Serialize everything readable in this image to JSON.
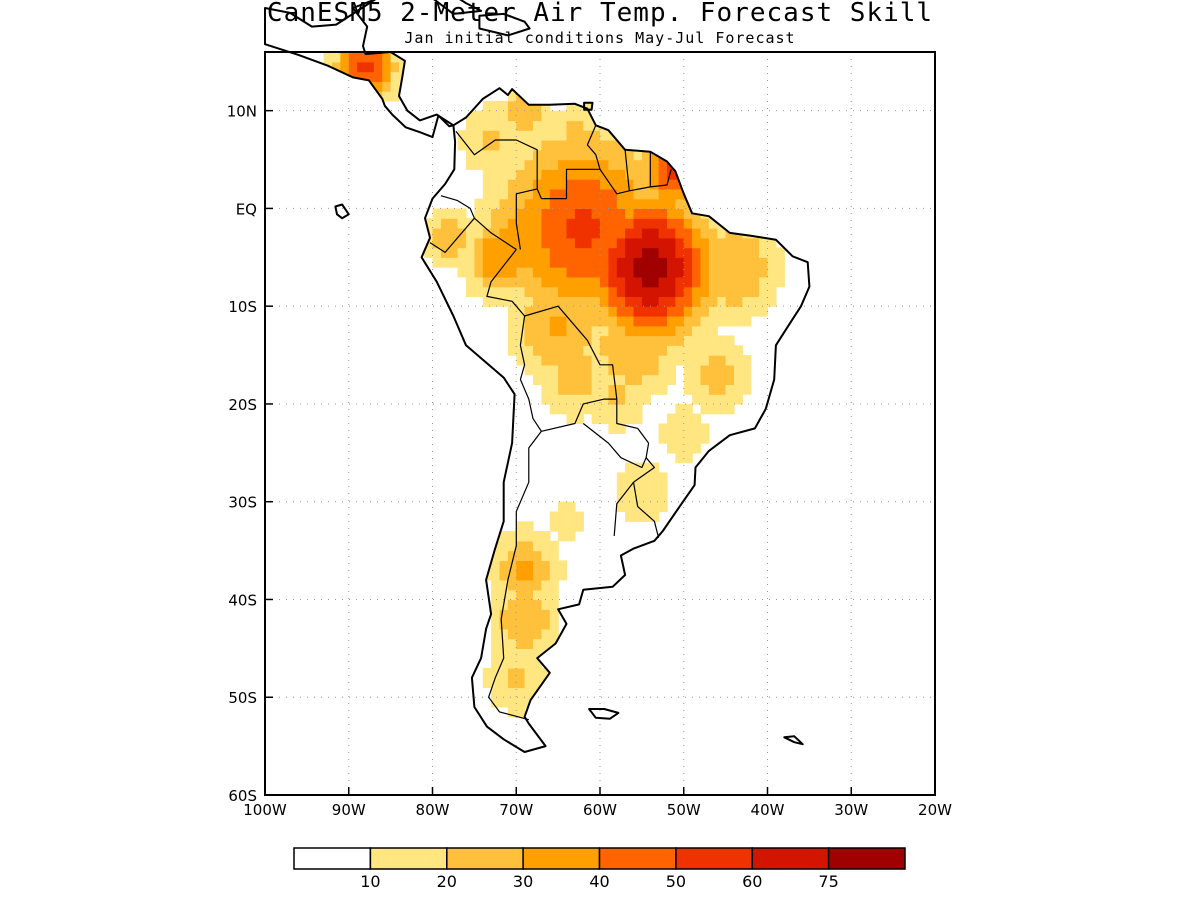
{
  "header": {
    "title": "CanESM5 2-Meter Air Temp. Forecast Skill",
    "subtitle": "Jan initial conditions  May-Jul Forecast"
  },
  "map": {
    "lon_range": [
      -100,
      -20
    ],
    "lat_range": [
      -60,
      16
    ],
    "x_ticks": [
      {
        "value": -100,
        "label": "100W"
      },
      {
        "value": -90,
        "label": "90W"
      },
      {
        "value": -80,
        "label": "80W"
      },
      {
        "value": -70,
        "label": "70W"
      },
      {
        "value": -60,
        "label": "60W"
      },
      {
        "value": -50,
        "label": "50W"
      },
      {
        "value": -40,
        "label": "40W"
      },
      {
        "value": -30,
        "label": "30W"
      },
      {
        "value": -20,
        "label": "20W"
      }
    ],
    "y_ticks": [
      {
        "value": 10,
        "label": "10N"
      },
      {
        "value": 0,
        "label": "EQ"
      },
      {
        "value": -10,
        "label": "10S"
      },
      {
        "value": -20,
        "label": "20S"
      },
      {
        "value": -30,
        "label": "30S"
      },
      {
        "value": -40,
        "label": "40S"
      },
      {
        "value": -50,
        "label": "50S"
      },
      {
        "value": -60,
        "label": "60S"
      }
    ],
    "grid": "dotted"
  },
  "legend": {
    "boundaries": [
      "10",
      "20",
      "30",
      "40",
      "50",
      "60",
      "75"
    ],
    "colors": [
      "#ffffff",
      "#ffe680",
      "#ffc03c",
      "#ffa000",
      "#ff6400",
      "#f03200",
      "#d21400",
      "#a00000"
    ]
  }
}
